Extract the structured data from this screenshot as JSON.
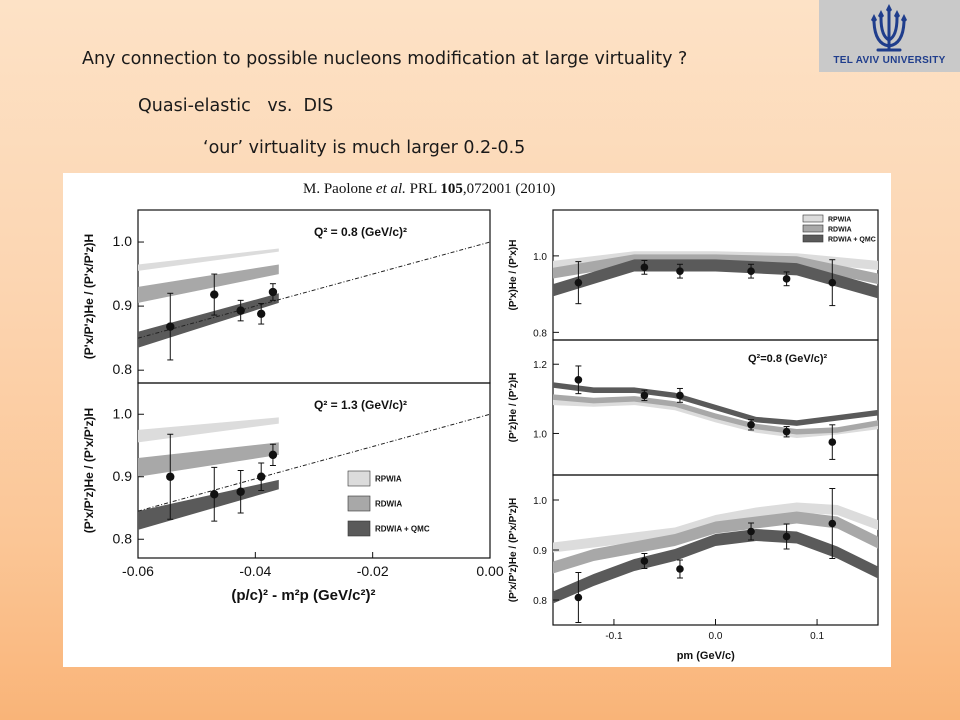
{
  "slide": {
    "heading": "Any connection to possible nucleons modification at large virtuality ?",
    "sub_heading": "Quasi-elastic   vs.  DIS",
    "note": "‘our’ virtuality is much larger 0.2-0.5"
  },
  "logo": {
    "text": "TEL AVIV UNIVERSITY",
    "icon": "menorah-icon",
    "color": "#1f3d8c"
  },
  "figure": {
    "citation_authors": "M. Paolone",
    "citation_etal": "et al.",
    "citation_journal": "PRL",
    "citation_volume": "105",
    "citation_rest": ",072001 (2010)"
  },
  "legend": [
    "RPWIA",
    "RDWIA",
    "RDWIA + QMC"
  ],
  "colors": {
    "RPWIA": "#dcdcdc",
    "RDWIA": "#a8a8a8",
    "RDWIA + QMC": "#5a5a5a",
    "markers": "#111111"
  },
  "chart_data": [
    {
      "id": "left-top",
      "type": "line",
      "annotation": "Q² = 0.8 (GeV/c)²",
      "xlabel": "",
      "ylabel": "(P'x/P'z)He / (P'x/P'z)H",
      "xlim": [
        -0.06,
        0.0
      ],
      "ylim": [
        0.78,
        1.05
      ],
      "xticks": [],
      "yticks": [
        "0.8",
        "0.9",
        "1.0"
      ],
      "points": [
        {
          "x": -0.0545,
          "y": 0.868,
          "err": 0.052
        },
        {
          "x": -0.047,
          "y": 0.918,
          "err": 0.032
        },
        {
          "x": -0.0425,
          "y": 0.893,
          "err": 0.016
        },
        {
          "x": -0.039,
          "y": 0.888,
          "err": 0.016
        },
        {
          "x": -0.037,
          "y": 0.922,
          "err": 0.013
        }
      ],
      "bands": [
        {
          "name": "RPWIA",
          "x": [
            -0.06,
            -0.036
          ],
          "low": [
            0.955,
            0.985
          ],
          "high": [
            0.965,
            0.99
          ]
        },
        {
          "name": "RDWIA",
          "x": [
            -0.06,
            -0.036
          ],
          "low": [
            0.905,
            0.95
          ],
          "high": [
            0.93,
            0.965
          ]
        },
        {
          "name": "RDWIA + QMC",
          "x": [
            -0.06,
            -0.036
          ],
          "low": [
            0.835,
            0.905
          ],
          "high": [
            0.86,
            0.92
          ]
        }
      ],
      "trend_line": {
        "x": [
          -0.06,
          0.0
        ],
        "y": [
          0.85,
          1.0
        ]
      }
    },
    {
      "id": "left-bottom",
      "type": "line",
      "annotation": "Q² = 1.3 (GeV/c)²",
      "xlabel": "(p/c)² - m²p  (GeV/c²)²",
      "ylabel": "(P'x/P'z)He / (P'x/P'z)H",
      "xlim": [
        -0.06,
        0.0
      ],
      "ylim": [
        0.77,
        1.05
      ],
      "xticks": [
        "-0.06",
        "-0.04",
        "-0.02",
        "0.00"
      ],
      "yticks": [
        "0.8",
        "0.9",
        "1.0"
      ],
      "points": [
        {
          "x": -0.0545,
          "y": 0.9,
          "err": 0.068
        },
        {
          "x": -0.047,
          "y": 0.872,
          "err": 0.043
        },
        {
          "x": -0.0425,
          "y": 0.876,
          "err": 0.034
        },
        {
          "x": -0.039,
          "y": 0.9,
          "err": 0.022
        },
        {
          "x": -0.037,
          "y": 0.935,
          "err": 0.017
        }
      ],
      "bands": [
        {
          "name": "RPWIA",
          "x": [
            -0.06,
            -0.036
          ],
          "low": [
            0.955,
            0.985
          ],
          "high": [
            0.975,
            0.995
          ]
        },
        {
          "name": "RDWIA",
          "x": [
            -0.06,
            -0.036
          ],
          "low": [
            0.9,
            0.935
          ],
          "high": [
            0.93,
            0.955
          ]
        },
        {
          "name": "RDWIA + QMC",
          "x": [
            -0.06,
            -0.036
          ],
          "low": [
            0.815,
            0.88
          ],
          "high": [
            0.845,
            0.895
          ]
        }
      ],
      "trend_line": {
        "x": [
          -0.06,
          0.0
        ],
        "y": [
          0.845,
          1.0
        ]
      },
      "legend_position": "bottom-right"
    },
    {
      "id": "right-top",
      "type": "line",
      "xlabel": "",
      "ylabel": "(P'x)He / (P'x)H",
      "xlim": [
        -0.16,
        0.16
      ],
      "ylim": [
        0.78,
        1.12
      ],
      "yticks": [
        "0.8",
        "1.0"
      ],
      "legend_position": "top-right",
      "points": [
        {
          "x": -0.135,
          "y": 0.93,
          "err": 0.055
        },
        {
          "x": -0.07,
          "y": 0.97,
          "err": 0.018
        },
        {
          "x": -0.035,
          "y": 0.96,
          "err": 0.018
        },
        {
          "x": 0.035,
          "y": 0.96,
          "err": 0.018
        },
        {
          "x": 0.07,
          "y": 0.94,
          "err": 0.018
        },
        {
          "x": 0.115,
          "y": 0.93,
          "err": 0.06
        }
      ],
      "bands": [
        {
          "name": "RPWIA",
          "x": [
            -0.16,
            -0.08,
            0.0,
            0.08,
            0.16
          ],
          "mid": [
            0.975,
            1.0,
            1.0,
            0.995,
            0.975
          ],
          "width": 0.012
        },
        {
          "name": "RDWIA",
          "x": [
            -0.16,
            -0.08,
            0.0,
            0.08,
            0.16
          ],
          "mid": [
            0.955,
            0.99,
            0.99,
            0.985,
            0.94
          ],
          "width": 0.014
        },
        {
          "name": "RDWIA + QMC",
          "x": [
            -0.16,
            -0.08,
            0.0,
            0.08,
            0.16
          ],
          "mid": [
            0.91,
            0.975,
            0.975,
            0.965,
            0.905
          ],
          "width": 0.016
        }
      ]
    },
    {
      "id": "right-middle",
      "type": "line",
      "annotation": "Q²=0.8 (GeV/c)²",
      "xlabel": "",
      "ylabel": "(P'z)He / (P'z)H",
      "xlim": [
        -0.16,
        0.16
      ],
      "ylim": [
        0.88,
        1.27
      ],
      "yticks": [
        "1.0",
        "1.2"
      ],
      "points": [
        {
          "x": -0.135,
          "y": 1.155,
          "err": 0.04
        },
        {
          "x": -0.07,
          "y": 1.11,
          "err": 0.015
        },
        {
          "x": -0.035,
          "y": 1.11,
          "err": 0.02
        },
        {
          "x": 0.035,
          "y": 1.025,
          "err": 0.015
        },
        {
          "x": 0.07,
          "y": 1.005,
          "err": 0.015
        },
        {
          "x": 0.115,
          "y": 0.975,
          "err": 0.05
        }
      ],
      "bands": [
        {
          "name": "RPWIA",
          "x": [
            -0.16,
            -0.12,
            -0.08,
            -0.04,
            0.0,
            0.04,
            0.08,
            0.12,
            0.16
          ],
          "mid": [
            1.09,
            1.085,
            1.09,
            1.075,
            1.04,
            1.01,
            0.995,
            1.005,
            1.02
          ],
          "width": 0.008
        },
        {
          "name": "RDWIA",
          "x": [
            -0.16,
            -0.12,
            -0.08,
            -0.04,
            0.0,
            0.04,
            0.08,
            0.12,
            0.16
          ],
          "mid": [
            1.105,
            1.095,
            1.1,
            1.085,
            1.05,
            1.02,
            1.005,
            1.01,
            1.03
          ],
          "width": 0.008
        },
        {
          "name": "RDWIA + QMC",
          "x": [
            -0.16,
            -0.12,
            -0.08,
            -0.04,
            0.0,
            0.04,
            0.08,
            0.12,
            0.16
          ],
          "mid": [
            1.14,
            1.125,
            1.125,
            1.11,
            1.075,
            1.04,
            1.03,
            1.045,
            1.06
          ],
          "width": 0.008
        }
      ]
    },
    {
      "id": "right-bottom",
      "type": "line",
      "xlabel": "pm (GeV/c)",
      "ylabel": "(P'x/P'z)He / (P'x/P'z)H",
      "xlim": [
        -0.16,
        0.16
      ],
      "ylim": [
        0.75,
        1.05
      ],
      "xticks": [
        "-0.1",
        "0.0",
        "0.1"
      ],
      "yticks": [
        "0.8",
        "0.9",
        "1.0"
      ],
      "points": [
        {
          "x": -0.135,
          "y": 0.805,
          "err": 0.05
        },
        {
          "x": -0.07,
          "y": 0.878,
          "err": 0.015
        },
        {
          "x": -0.035,
          "y": 0.862,
          "err": 0.018
        },
        {
          "x": 0.035,
          "y": 0.937,
          "err": 0.017
        },
        {
          "x": 0.07,
          "y": 0.927,
          "err": 0.025
        },
        {
          "x": 0.115,
          "y": 0.953,
          "err": 0.07
        }
      ],
      "bands": [
        {
          "name": "RPWIA",
          "x": [
            -0.16,
            -0.12,
            -0.08,
            -0.04,
            0.0,
            0.04,
            0.08,
            0.12,
            0.16
          ],
          "mid": [
            0.905,
            0.915,
            0.925,
            0.935,
            0.96,
            0.975,
            0.985,
            0.98,
            0.95
          ],
          "width": 0.01
        },
        {
          "name": "RDWIA",
          "x": [
            -0.16,
            -0.12,
            -0.08,
            -0.04,
            0.0,
            0.04,
            0.08,
            0.12,
            0.16
          ],
          "mid": [
            0.865,
            0.89,
            0.905,
            0.92,
            0.945,
            0.955,
            0.965,
            0.955,
            0.915
          ],
          "width": 0.012
        },
        {
          "name": "RDWIA + QMC",
          "x": [
            -0.16,
            -0.12,
            -0.08,
            -0.04,
            0.0,
            0.04,
            0.08,
            0.12,
            0.16
          ],
          "mid": [
            0.805,
            0.84,
            0.87,
            0.89,
            0.92,
            0.93,
            0.925,
            0.895,
            0.855
          ],
          "width": 0.012
        }
      ]
    }
  ]
}
